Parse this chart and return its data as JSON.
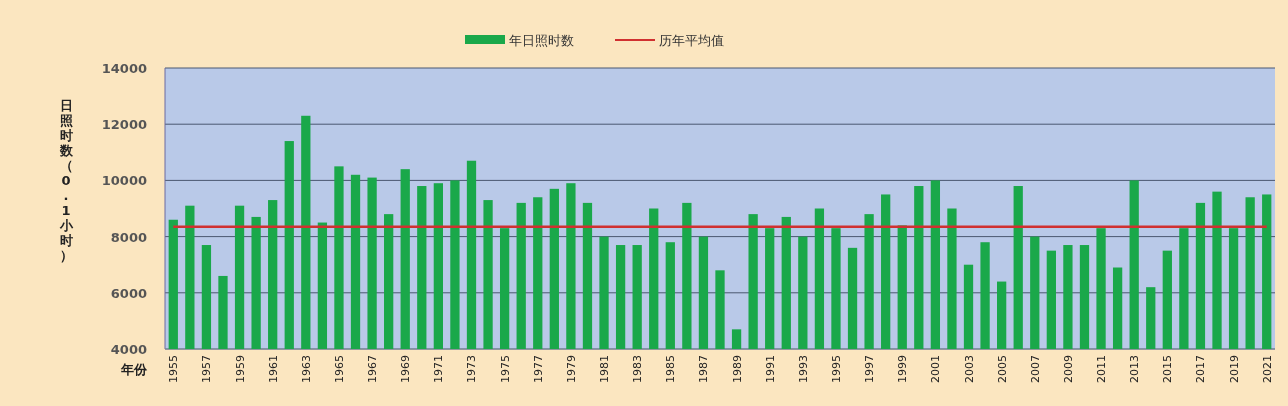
{
  "chart_data": {
    "type": "bar",
    "xlabel": "年份",
    "ylabel": "日照时数（0.1小时）",
    "categories": [
      "1955",
      null,
      "1957",
      null,
      "1959",
      null,
      "1961",
      null,
      "1963",
      null,
      "1965",
      null,
      "1967",
      null,
      "1969",
      null,
      "1971",
      null,
      "1973",
      null,
      "1975",
      null,
      "1977",
      null,
      "1979",
      null,
      "1981",
      null,
      "1983",
      null,
      "1985",
      null,
      "1987",
      null,
      "1989",
      null,
      "1991",
      null,
      "1993",
      null,
      "1995",
      null,
      "1997",
      null,
      "1999",
      null,
      "2001",
      null,
      "2003",
      null,
      "2005",
      null,
      "2007",
      null,
      "2009",
      null,
      "2011",
      null,
      "2013",
      null,
      "2015",
      null,
      "2017",
      null,
      "2019",
      null,
      "2021"
    ],
    "series": [
      {
        "name": "年日照时数",
        "color": "#1aa84a",
        "values": [
          8600,
          9100,
          7700,
          6600,
          9100,
          8700,
          9300,
          11400,
          12300,
          8500,
          10500,
          10200,
          10100,
          8800,
          10400,
          9800,
          9900,
          10000,
          10700,
          9300,
          8300,
          9200,
          9400,
          9700,
          9900,
          9200,
          8000,
          7700,
          7700,
          9000,
          7800,
          9200,
          8000,
          6800,
          4700,
          8800,
          8300,
          8700,
          8000,
          9000,
          8300,
          7600,
          8800,
          9500,
          8400,
          9800,
          10000,
          9000,
          7000,
          7800,
          6400,
          9800,
          8000,
          7500,
          7700,
          7700,
          8300,
          6900,
          10000,
          6200,
          7500,
          8300,
          9200,
          9600,
          8300,
          9400,
          9500
        ]
      },
      {
        "name": "历年平均值",
        "type": "line",
        "color": "#d03030",
        "values": [
          8350,
          8350,
          8350,
          8350,
          8350,
          8350,
          8350,
          8350,
          8350,
          8350,
          8350,
          8350,
          8350,
          8350,
          8350,
          8350,
          8350,
          8350,
          8350,
          8350,
          8350,
          8350,
          8350,
          8350,
          8350,
          8350,
          8350,
          8350,
          8350,
          8350,
          8350,
          8350,
          8350,
          8350,
          8350,
          8350,
          8350,
          8350,
          8350,
          8350,
          8350,
          8350,
          8350,
          8350,
          8350,
          8350,
          8350,
          8350,
          8350,
          8350,
          8350,
          8350,
          8350,
          8350,
          8350,
          8350,
          8350,
          8350,
          8350,
          8350,
          8350,
          8350,
          8350,
          8350,
          8350,
          8350,
          8350
        ]
      }
    ],
    "ylim": [
      4000,
      14000
    ],
    "yticks": [
      4000,
      6000,
      8000,
      10000,
      12000,
      14000
    ],
    "grid": "y",
    "legend": "top",
    "marker": "none",
    "line_style": "solid"
  }
}
